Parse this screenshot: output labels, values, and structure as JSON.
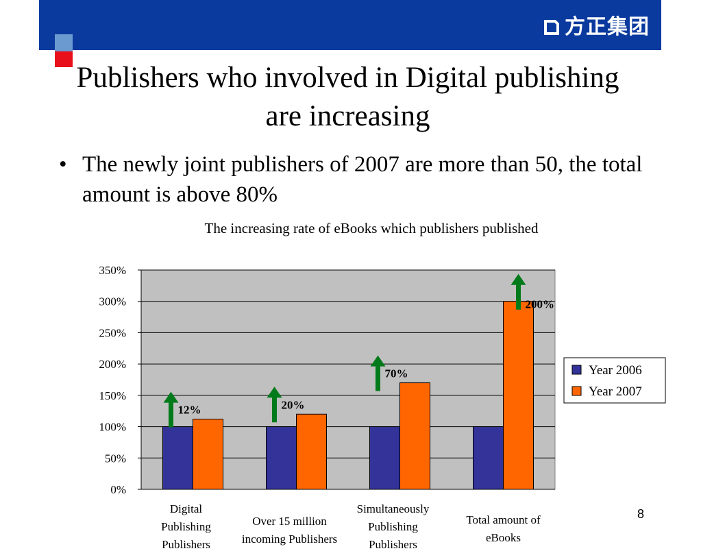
{
  "brand": {
    "logo_text": "方正集团"
  },
  "slide": {
    "title": "Publishers who involved in Digital publishing are increasing",
    "bullet": "The newly joint publishers of 2007 are more than 50, the total amount is above 80%",
    "page_number": "8"
  },
  "chart_data": {
    "type": "bar",
    "title": "The increasing rate of eBooks which publishers published",
    "categories": [
      [
        "Digital",
        "Publishing",
        "Publishers"
      ],
      [
        "Over 15 million",
        "incoming Publishers"
      ],
      [
        "Simultaneously",
        "Publishing",
        "Publishers"
      ],
      [
        "Total amount of",
        "eBooks"
      ]
    ],
    "series": [
      {
        "name": "Year 2006",
        "color": "#333399",
        "values": [
          100,
          100,
          100,
          100
        ]
      },
      {
        "name": "Year 2007",
        "color": "#ff6600",
        "values": [
          112,
          120,
          170,
          300
        ]
      }
    ],
    "annotations": [
      "12%",
      "20%",
      "70%",
      "200%"
    ],
    "annotation_arrow_color": "#007a1a",
    "plot_background": "#c0c0c0",
    "ylim": [
      0,
      350
    ],
    "yticks": [
      0,
      50,
      100,
      150,
      200,
      250,
      300,
      350
    ],
    "ytick_labels": [
      "0%",
      "50%",
      "100%",
      "150%",
      "200%",
      "250%",
      "300%",
      "350%"
    ],
    "grid": true,
    "legend": "right"
  }
}
